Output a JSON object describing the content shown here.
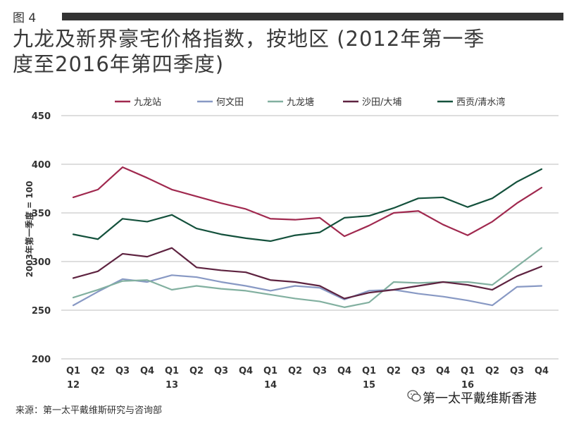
{
  "figure_label": "图 4",
  "title_line1": "九龙及新界豪宅价格指数，按地区 (2012年第一季",
  "title_line2": "度至2016年第四季度)",
  "source": "来源：第一太平戴维斯研究与咨询部",
  "watermark": "第一太平戴维斯香港",
  "chart_data": {
    "type": "line",
    "title": "九龙及新界豪宅价格指数，按地区 (2012年第一季度至2016年第四季度)",
    "ylabel": "2003年第一季度 = 100",
    "xlabel": "",
    "ylim": [
      200,
      450
    ],
    "yticks": [
      200,
      250,
      300,
      350,
      400,
      450
    ],
    "grid": true,
    "legend_position": "top",
    "categories": [
      "Q1",
      "Q2",
      "Q3",
      "Q4",
      "Q1",
      "Q2",
      "Q3",
      "Q4",
      "Q1",
      "Q2",
      "Q3",
      "Q4",
      "Q1",
      "Q2",
      "Q3",
      "Q4",
      "Q1",
      "Q2",
      "Q3",
      "Q4"
    ],
    "year_labels": [
      "12",
      "",
      "",
      "",
      "13",
      "",
      "",
      "",
      "14",
      "",
      "",
      "",
      "15",
      "",
      "",
      "",
      "16",
      "",
      "",
      ""
    ],
    "series": [
      {
        "name": "九龙站",
        "color": "#a0294f",
        "values": [
          366,
          374,
          397,
          386,
          374,
          367,
          360,
          354,
          344,
          343,
          345,
          326,
          337,
          350,
          352,
          338,
          327,
          341,
          360,
          376
        ]
      },
      {
        "name": "何文田",
        "color": "#8899c4",
        "values": [
          255,
          269,
          282,
          279,
          286,
          284,
          279,
          275,
          270,
          275,
          273,
          261,
          270,
          271,
          267,
          264,
          260,
          255,
          274,
          275
        ]
      },
      {
        "name": "九龙塘",
        "color": "#82b0a0",
        "values": [
          263,
          271,
          280,
          281,
          271,
          275,
          272,
          270,
          266,
          262,
          259,
          253,
          258,
          279,
          278,
          279,
          279,
          276,
          295,
          314
        ]
      },
      {
        "name": "沙田/大埔",
        "color": "#5e2340",
        "values": [
          283,
          290,
          308,
          305,
          314,
          294,
          291,
          289,
          281,
          279,
          275,
          262,
          268,
          271,
          275,
          279,
          276,
          271,
          285,
          295
        ]
      },
      {
        "name": "西贡/清水湾",
        "color": "#14513c",
        "values": [
          328,
          323,
          344,
          341,
          348,
          334,
          328,
          324,
          321,
          327,
          330,
          345,
          347,
          355,
          365,
          366,
          356,
          365,
          382,
          395
        ]
      }
    ]
  }
}
